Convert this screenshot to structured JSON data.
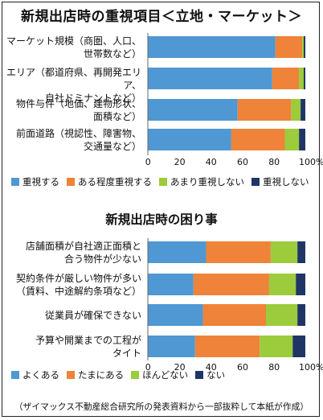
{
  "chart_data": [
    {
      "type": "bar",
      "orientation": "horizontal",
      "stacked": true,
      "title": "新規出店時の重視項目＜立地・マーケット＞",
      "categories": [
        "マーケット規模（商圏、人口、\n世帯数など）",
        "エリア（都道府県、再開発エリア、\n自社ドミナントなど）",
        "物件与件（地価、建物形状、\n面積など）",
        "前面道路（視認性、障害物、\n交通量など）"
      ],
      "series": [
        {
          "name": "重視する",
          "values": [
            81,
            79,
            57,
            53
          ]
        },
        {
          "name": "ある程度重視する",
          "values": [
            17,
            17,
            34,
            34
          ]
        },
        {
          "name": "あまり重視しない",
          "values": [
            1,
            3,
            6,
            9
          ]
        },
        {
          "name": "重視しない",
          "values": [
            1,
            1,
            3,
            4
          ]
        }
      ],
      "colors": [
        "#4f98d3",
        "#ee8339",
        "#9ccb3b",
        "#1f3565"
      ],
      "xlim": [
        0,
        100
      ],
      "xticks": [
        "0",
        "20",
        "40",
        "60",
        "80",
        "100%"
      ],
      "legend_position": "bottom"
    },
    {
      "type": "bar",
      "orientation": "horizontal",
      "stacked": true,
      "title": "新規出店時の困り事",
      "categories": [
        "店舗面積が自社適正面積と\n合う物件が少ない",
        "契約条件が厳しい物件が多い\n（賃料、中途解約条項など）",
        "従業員が確保できない",
        "予算や開業までの工程が\nタイト"
      ],
      "series": [
        {
          "name": "よくある",
          "values": [
            37,
            29,
            35,
            30
          ]
        },
        {
          "name": "たまにある",
          "values": [
            41,
            48,
            40,
            41
          ]
        },
        {
          "name": "ほんどない",
          "values": [
            17,
            17,
            20,
            21
          ]
        },
        {
          "name": "ない",
          "values": [
            5,
            6,
            5,
            8
          ]
        }
      ],
      "colors": [
        "#4f98d3",
        "#ee8339",
        "#9ccb3b",
        "#1f3565"
      ],
      "xlim": [
        0,
        100
      ],
      "xticks": [
        "0",
        "20",
        "40",
        "60",
        "80",
        "100%"
      ],
      "legend_position": "bottom"
    }
  ],
  "footnote": "（ザイマックス不動産総合研究所の発表資料から一部抜粋して本紙が作成）"
}
